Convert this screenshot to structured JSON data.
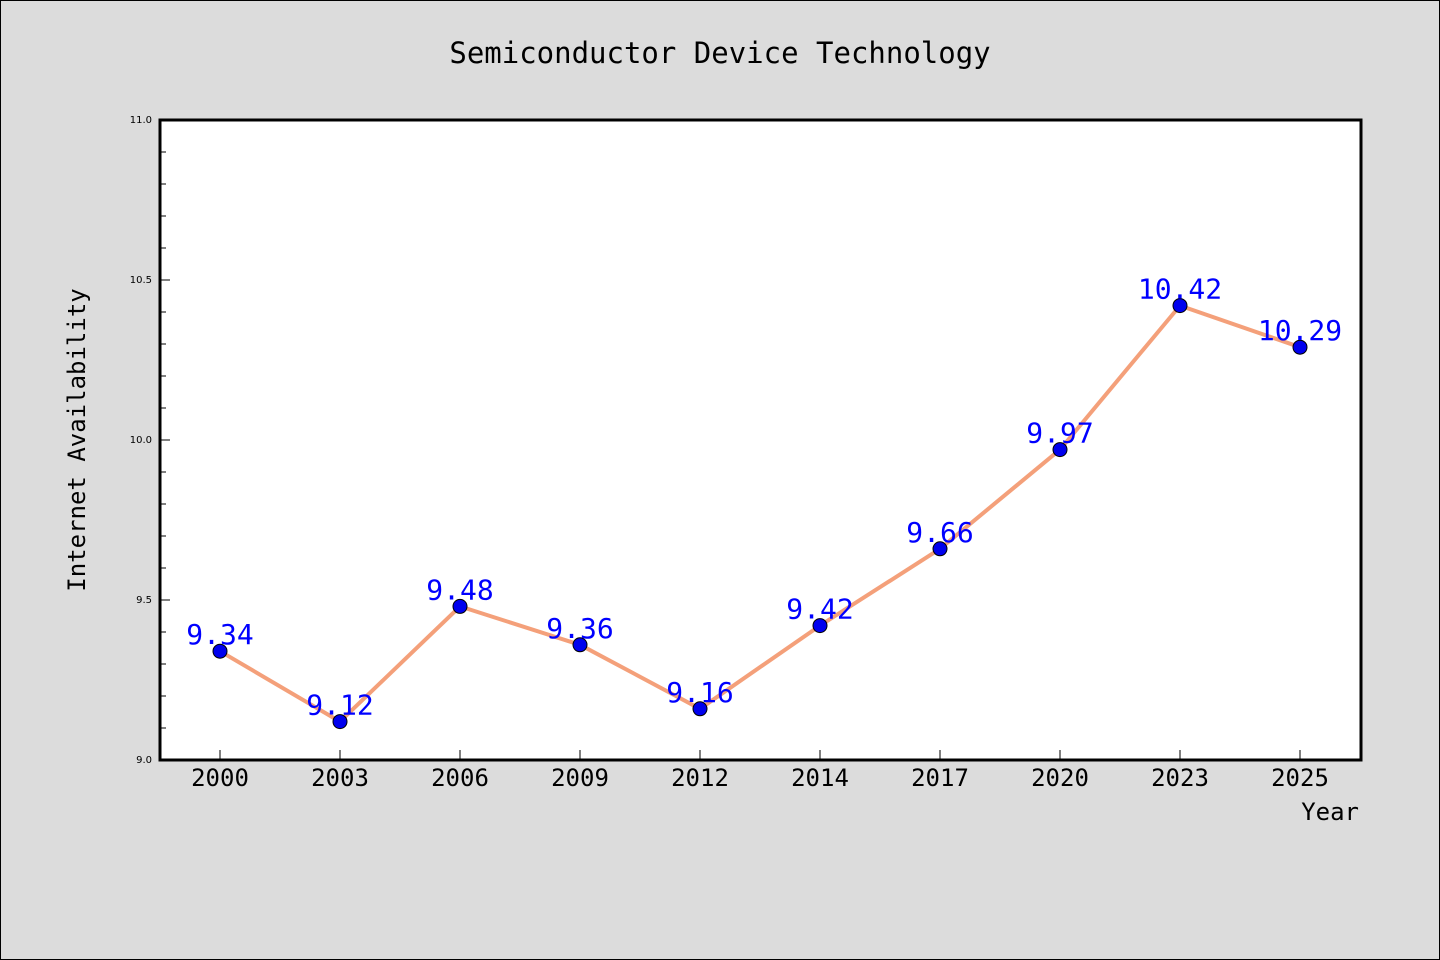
{
  "chart_data": {
    "type": "line",
    "title": "Semiconductor Device Technology",
    "xlabel": "Year",
    "ylabel": "Internet Availability",
    "categories": [
      "2000",
      "2003",
      "2006",
      "2009",
      "2012",
      "2014",
      "2017",
      "2020",
      "2023",
      "2025"
    ],
    "series": [
      {
        "values": [
          9.34,
          9.12,
          9.48,
          9.36,
          9.16,
          9.42,
          9.66,
          9.97,
          10.42,
          10.29
        ]
      }
    ],
    "data_labels": [
      "9.34",
      "9.12",
      "9.48",
      "9.36",
      "9.16",
      "9.42",
      "9.66",
      "9.97",
      "10.42",
      "10.29"
    ],
    "ylim": [
      9.0,
      11.0
    ],
    "yticks": [
      "9.0",
      "9.5",
      "10.0",
      "10.5",
      "11.0"
    ],
    "grid": false,
    "legend": "none",
    "colors": {
      "line": "#f4a07a",
      "marker": "#0000ee",
      "label": "#0000ff",
      "background": "#dcdcdc",
      "plot_background": "#ffffff"
    }
  }
}
